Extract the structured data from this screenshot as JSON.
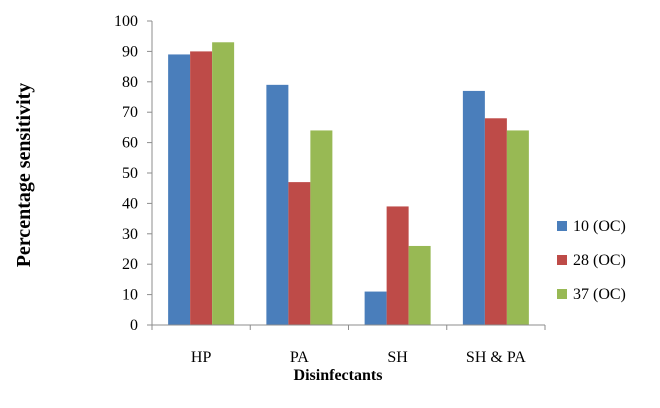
{
  "chart_data": {
    "type": "bar",
    "xlabel": "Disinfectants",
    "ylabel": "Percentage sensitivity",
    "categories": [
      "HP",
      "PA",
      "SH",
      "SH & PA"
    ],
    "series": [
      {
        "name": "10 (OC)",
        "color": "#4a7ebb",
        "values": [
          89,
          79,
          11,
          77
        ]
      },
      {
        "name": "28 (OC)",
        "color": "#be4b48",
        "values": [
          90,
          47,
          39,
          68
        ]
      },
      {
        "name": "37 (OC)",
        "color": "#98b954",
        "values": [
          93,
          64,
          26,
          64
        ]
      }
    ],
    "ylim": [
      0,
      100
    ],
    "yticks": [
      0,
      10,
      20,
      30,
      40,
      50,
      60,
      70,
      80,
      90,
      100
    ],
    "grid": false,
    "legend_position": "right"
  }
}
